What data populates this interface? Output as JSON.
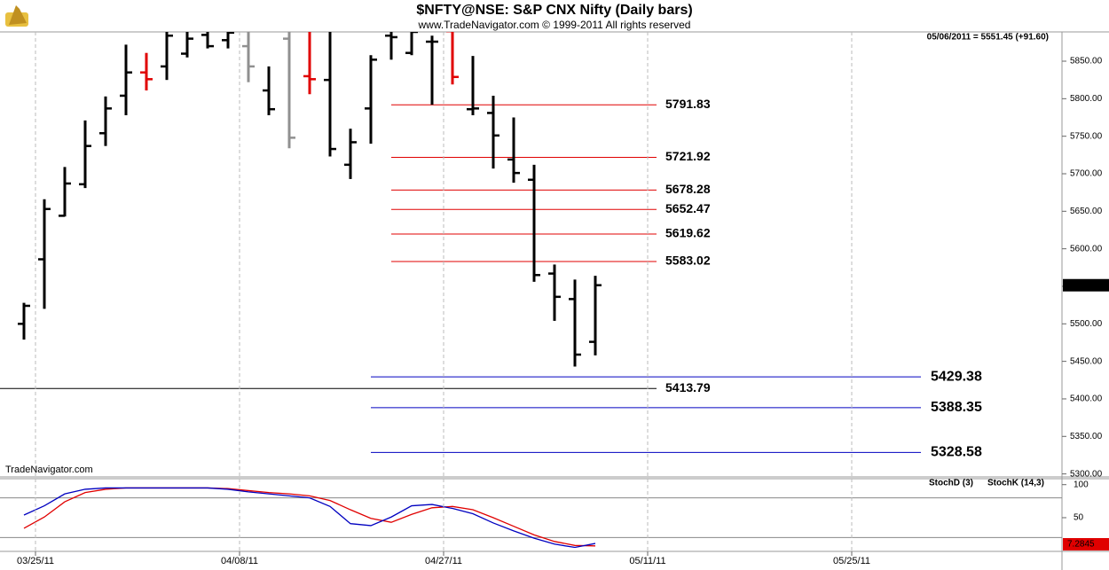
{
  "chart_data": [
    {
      "type": "ohlc",
      "title": "$NFTY@NSE:  S&P CNX Nifty  (Daily bars)",
      "subtitle": "www.TradeNavigator.com © 1999-2011 All rights reserved",
      "header": "05/06/2011 = 5551.45 (+91.60)",
      "watermark": "TradeNavigator.com",
      "categories": [
        null,
        "03/25/11",
        null,
        null,
        null,
        null,
        null,
        null,
        null,
        null,
        null,
        "04/08/11",
        null,
        null,
        null,
        null,
        null,
        null,
        null,
        null,
        null,
        "04/27/11",
        null,
        null,
        null,
        null,
        null,
        null,
        null,
        null,
        null,
        "05/11/11",
        null,
        null,
        null,
        null,
        null,
        null,
        null,
        null,
        null,
        "05/25/11",
        null,
        null,
        null,
        null,
        null,
        null,
        null,
        null,
        null
      ],
      "open": [
        5500,
        5586,
        5644,
        5686,
        5754,
        5804,
        5835,
        5843,
        5860,
        5885,
        5878,
        5870,
        5811,
        5880,
        5830,
        5825,
        5712,
        5787,
        5884,
        5861,
        5876,
        5890,
        5786,
        5781,
        5719,
        5692,
        5567,
        5533,
        5476,
        null,
        null,
        null,
        null,
        null,
        null,
        null,
        null,
        null,
        null,
        null,
        null,
        null,
        null,
        null,
        null,
        null,
        null,
        null,
        null,
        null,
        null
      ],
      "high": [
        5528,
        5666,
        5709,
        5771,
        5803,
        5872,
        5861,
        5895,
        5900,
        5905,
        5900,
        5895,
        5843,
        5900,
        5905,
        5905,
        5760,
        5858,
        5895,
        5895,
        5884,
        5895,
        5857,
        5804,
        5775,
        5712,
        5579,
        5559,
        5564,
        null,
        null,
        null,
        null,
        null,
        null,
        null,
        null,
        null,
        null,
        null,
        null,
        null,
        null,
        null,
        null,
        null,
        null,
        null,
        null,
        null,
        null
      ],
      "low": [
        5479,
        5520,
        5643,
        5681,
        5737,
        5778,
        5811,
        5825,
        5855,
        5867,
        5867,
        5822,
        5778,
        5734,
        5806,
        5723,
        5693,
        5740,
        5852,
        5858,
        5792,
        5819,
        5778,
        5707,
        5688,
        5556,
        5504,
        5443,
        5458,
        null,
        null,
        null,
        null,
        null,
        null,
        null,
        null,
        null,
        null,
        null,
        null,
        null,
        null,
        null,
        null,
        null,
        null,
        null,
        null,
        null,
        null
      ],
      "close": [
        5524,
        5653,
        5687,
        5737,
        5787,
        5835,
        5826,
        5884,
        5880,
        5870,
        5888,
        5843,
        5786,
        5748,
        5826,
        5733,
        5742,
        5852,
        5882,
        5889,
        5876,
        5829,
        5787,
        5751,
        5701,
        5565,
        5536,
        5459,
        5551.45,
        null,
        null,
        null,
        null,
        null,
        null,
        null,
        null,
        null,
        null,
        null,
        null,
        null,
        null,
        null,
        null,
        null,
        null,
        null,
        null,
        null,
        null
      ],
      "colors": [
        "#000",
        "#000",
        "#000",
        "#000",
        "#000",
        "#000",
        "#e00000",
        "#000",
        "#000",
        "#000",
        "#000",
        "#909090",
        "#000",
        "#909090",
        "#e00000",
        "#000",
        "#000",
        "#000",
        "#000",
        "#000",
        "#000",
        "#e00000",
        "#000",
        "#000",
        "#000",
        "#000",
        "#000",
        "#000",
        "#000",
        null,
        null,
        null,
        null,
        null,
        null,
        null,
        null,
        null,
        null,
        null,
        null,
        null,
        null,
        null,
        null,
        null,
        null,
        null,
        null,
        null,
        null
      ],
      "ylim": [
        5296,
        5889
      ],
      "yticks": [
        {
          "value": 5850,
          "label": "5850.00"
        },
        {
          "value": 5800,
          "label": "5800.00"
        },
        {
          "value": 5750,
          "label": "5750.00"
        },
        {
          "value": 5700,
          "label": "5700.00"
        },
        {
          "value": 5650,
          "label": "5650.00"
        },
        {
          "value": 5600,
          "label": "5600.00"
        },
        {
          "value": 5550,
          "label": "5550.00"
        },
        {
          "value": 5500,
          "label": "5500.00"
        },
        {
          "value": 5450,
          "label": "5450.00"
        },
        {
          "value": 5400,
          "label": "5400.00"
        },
        {
          "value": 5350,
          "label": "5350.00"
        },
        {
          "value": 5300,
          "label": "5300.00"
        }
      ],
      "resistance_levels": {
        "color": "#e00000",
        "values": [
          5791.83,
          5721.92,
          5678.28,
          5652.47,
          5619.62,
          5583.02
        ]
      },
      "close_level": {
        "color": "#000000",
        "values": [
          5413.79
        ]
      },
      "support_levels": {
        "color": "#0000c0",
        "values": [
          5429.38,
          5388.35,
          5328.58
        ]
      }
    },
    {
      "type": "line",
      "series": [
        {
          "name": "StochD (3)",
          "color": "#e00000",
          "values": [
            34,
            51,
            74,
            88,
            93,
            95,
            95,
            95,
            95,
            95,
            94,
            91,
            88,
            86,
            83,
            76,
            62,
            49,
            43,
            55,
            65,
            67,
            62,
            50,
            37,
            24,
            14,
            8,
            7.2845,
            null,
            null,
            null,
            null,
            null,
            null,
            null,
            null,
            null,
            null,
            null,
            null,
            null,
            null,
            null,
            null,
            null,
            null,
            null,
            null,
            null,
            null
          ]
        },
        {
          "name": "StochK (14,3)",
          "color": "#0000c0",
          "values": [
            54,
            68,
            86,
            93,
            95,
            95,
            95,
            95,
            95,
            95,
            93,
            89,
            86,
            83,
            80,
            67,
            41,
            38,
            51,
            68,
            70,
            64,
            56,
            42,
            30,
            19,
            10,
            5,
            11,
            null,
            null,
            null,
            null,
            null,
            null,
            null,
            null,
            null,
            null,
            null,
            null,
            null,
            null,
            null,
            null,
            null,
            null,
            null,
            null,
            null,
            null
          ]
        }
      ],
      "ylim": [
        -1,
        109
      ],
      "yticks": [
        100,
        50
      ],
      "hlines": [
        80,
        20
      ]
    }
  ]
}
